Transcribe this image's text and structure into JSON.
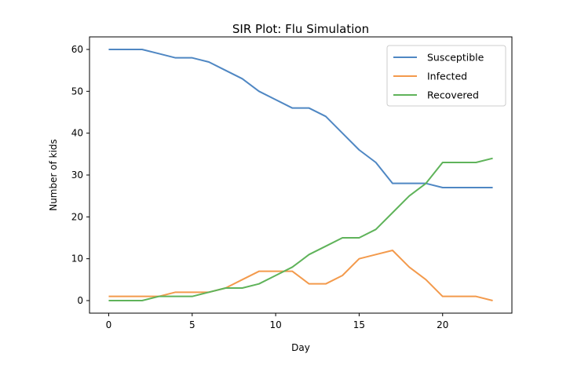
{
  "chart_data": {
    "type": "line",
    "title": "SIR Plot: Flu Simulation",
    "xlabel": "Day",
    "ylabel": "Number of kids",
    "x": [
      0,
      1,
      2,
      3,
      4,
      5,
      6,
      7,
      8,
      9,
      10,
      11,
      12,
      13,
      14,
      15,
      16,
      17,
      18,
      19,
      20,
      21,
      22,
      23
    ],
    "xlim": [
      -1.15,
      24.15
    ],
    "ylim": [
      -3,
      63
    ],
    "xticks": [
      0,
      5,
      10,
      15,
      20
    ],
    "yticks": [
      0,
      10,
      20,
      30,
      40,
      50,
      60
    ],
    "grid": false,
    "legend_position": "top-right",
    "series": [
      {
        "name": "Susceptible",
        "color": "#4f87c3",
        "values": [
          60,
          60,
          60,
          59,
          58,
          58,
          57,
          55,
          53,
          50,
          48,
          46,
          46,
          44,
          40,
          36,
          33,
          28,
          28,
          28,
          27,
          27,
          27,
          27
        ]
      },
      {
        "name": "Infected",
        "color": "#f39a4c",
        "values": [
          1,
          1,
          1,
          1,
          2,
          2,
          2,
          3,
          5,
          7,
          7,
          7,
          4,
          4,
          6,
          10,
          11,
          12,
          8,
          5,
          1,
          1,
          1,
          0
        ]
      },
      {
        "name": "Recovered",
        "color": "#5fb35a",
        "values": [
          0,
          0,
          0,
          1,
          1,
          1,
          2,
          3,
          3,
          4,
          6,
          8,
          11,
          13,
          15,
          15,
          17,
          21,
          25,
          28,
          33,
          33,
          33,
          34
        ]
      }
    ]
  }
}
